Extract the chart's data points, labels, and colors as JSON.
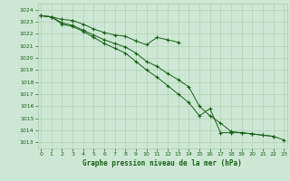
{
  "title": "Graphe pression niveau de la mer (hPa)",
  "bg_color": "#cce8d4",
  "grid_color": "#aaccaa",
  "line_color": "#1a5e1a",
  "x": [
    0,
    1,
    2,
    3,
    4,
    5,
    6,
    7,
    8,
    9,
    10,
    11,
    12,
    13,
    14,
    15,
    16,
    17,
    18,
    19,
    20,
    21,
    22,
    23
  ],
  "line1": [
    1023.5,
    1023.4,
    1023.2,
    1023.1,
    1022.8,
    1022.4,
    1022.1,
    1021.9,
    1021.8,
    1021.4,
    1021.1,
    1021.7,
    1021.5,
    1021.3,
    null,
    null,
    null,
    null,
    null,
    null,
    null,
    null,
    null,
    null
  ],
  "line2": [
    1023.5,
    1023.4,
    1022.9,
    1022.7,
    1022.3,
    1021.9,
    1021.5,
    1021.2,
    1020.9,
    1020.4,
    1019.7,
    1019.3,
    1018.7,
    1018.2,
    1017.6,
    1016.0,
    1015.2,
    1014.6,
    1013.9,
    1013.8,
    1013.7,
    1013.6,
    1013.5,
    1013.2
  ],
  "line3": [
    1023.5,
    1023.4,
    1022.8,
    1022.6,
    1022.2,
    1021.7,
    1021.2,
    1020.8,
    1020.4,
    1019.7,
    1019.0,
    1018.4,
    1017.7,
    1017.0,
    1016.3,
    1015.2,
    1015.8,
    1013.8,
    1013.8,
    1013.8,
    1013.7,
    1013.6,
    1013.5,
    null
  ],
  "ylim": [
    1012.5,
    1024.5
  ],
  "yticks": [
    1013,
    1014,
    1015,
    1016,
    1017,
    1018,
    1019,
    1020,
    1021,
    1022,
    1023,
    1024
  ],
  "xticks": [
    0,
    1,
    2,
    3,
    4,
    5,
    6,
    7,
    8,
    9,
    10,
    11,
    12,
    13,
    14,
    15,
    16,
    17,
    18,
    19,
    20,
    21,
    22,
    23
  ],
  "figwidth": 3.2,
  "figheight": 2.0,
  "dpi": 100
}
